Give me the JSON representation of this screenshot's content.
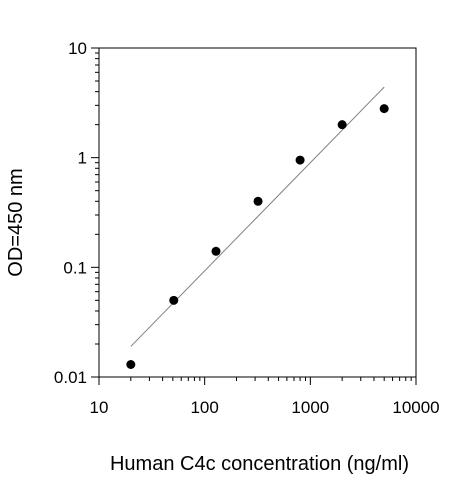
{
  "chart_data": {
    "type": "scatter",
    "title": "",
    "xlabel": "Human C4c concentration (ng/ml)",
    "ylabel": "OD=450 nm",
    "x_scale": "log",
    "y_scale": "log",
    "xlim": [
      10,
      10000
    ],
    "ylim": [
      0.01,
      10
    ],
    "x_ticks": [
      10,
      100,
      1000,
      10000
    ],
    "x_tick_labels": [
      "10",
      "100",
      "1000",
      "10000"
    ],
    "y_ticks": [
      0.01,
      0.1,
      1,
      10
    ],
    "y_tick_labels": [
      "0.01",
      "0.1",
      "1",
      "10"
    ],
    "grid": false,
    "series": [
      {
        "points": [
          {
            "x": 20,
            "y": 0.013
          },
          {
            "x": 51,
            "y": 0.05
          },
          {
            "x": 128,
            "y": 0.14
          },
          {
            "x": 320,
            "y": 0.4
          },
          {
            "x": 800,
            "y": 0.95
          },
          {
            "x": 2000,
            "y": 2.0
          },
          {
            "x": 5000,
            "y": 2.8
          }
        ]
      }
    ],
    "fit_line": {
      "from": {
        "x": 20,
        "y": 0.019
      },
      "to": {
        "x": 5000,
        "y": 4.4
      }
    },
    "colors": {
      "points": "#000000",
      "fit_line": "#808080",
      "axes": "#000000"
    }
  }
}
